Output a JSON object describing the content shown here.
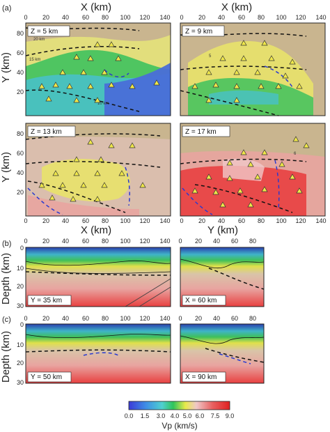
{
  "figure": {
    "panel_labels": {
      "a": "(a)",
      "b": "(b)",
      "c": "(c)"
    },
    "map_panels": [
      {
        "label": "Z = 5 km"
      },
      {
        "label": "Z = 9 km"
      },
      {
        "label": "Z = 13 km"
      },
      {
        "label": "Z = 17 km"
      }
    ],
    "map_contour_labels": [
      "20 km",
      "15 km",
      "10 km",
      "5",
      "5",
      "6"
    ],
    "section_panels": [
      {
        "label": "Y = 35 km"
      },
      {
        "label": "X = 60 km"
      },
      {
        "label": "Y = 50 km"
      },
      {
        "label": "X = 90 km"
      }
    ],
    "axes": {
      "x_km": "X (km)",
      "y_km": "Y (km)",
      "depth_km": "Depth (km)",
      "x_ticks": [
        "0",
        "20",
        "40",
        "60",
        "80",
        "100",
        "120",
        "140"
      ],
      "y_ticks": [
        "20",
        "40",
        "60",
        "80"
      ],
      "y_ticks_small": [
        "0",
        "20",
        "40",
        "60",
        "80"
      ],
      "depth_ticks": [
        "0",
        "10",
        "20",
        "30"
      ]
    },
    "colorbar": {
      "title": "Vp (km/s)",
      "ticks": [
        "0.0",
        "1.5",
        "3.0",
        "4.0",
        "5.0",
        "6.0",
        "7.5",
        "9.0"
      ],
      "colors": [
        "#3b3bd6",
        "#3f8ee6",
        "#4fd0d0",
        "#2fc45a",
        "#e8ea4a",
        "#f0c8c8",
        "#e86060",
        "#e02020"
      ]
    }
  }
}
